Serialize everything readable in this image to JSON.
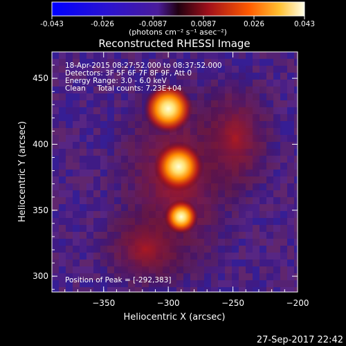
{
  "chart_data": {
    "type": "heatmap",
    "title": "Reconstructed RHESSI Image",
    "xlabel": "Heliocentric X (arcsec)",
    "ylabel": "Heliocentric Y (arcsec)",
    "xlim": [
      -390,
      -200
    ],
    "ylim": [
      288,
      470
    ],
    "xticks": [
      -350,
      -300,
      -250,
      -200
    ],
    "yticks": [
      300,
      350,
      400,
      450
    ],
    "colorbar": {
      "label": "(photons cm⁻² s⁻¹ asec⁻²)",
      "ticks": [
        "-0.043",
        "-0.026",
        "-0.0087",
        "0.0087",
        "0.026",
        "0.043"
      ],
      "range": [
        -0.043,
        0.043
      ]
    },
    "info_lines": [
      "18-Apr-2015 08:27:52.000 to 08:37:52.000",
      "Detectors: 3F 5F 6F 7F 8F 9F, Att 0",
      "Energy Range: 3.0 - 6.0 keV",
      "Clean     Total counts: 7.23E+04"
    ],
    "peak_label": "Position of Peak = [-292,383]",
    "sources": [
      {
        "x": -300,
        "y": 427,
        "peak": 0.043
      },
      {
        "x": -292,
        "y": 383,
        "peak": 0.043
      },
      {
        "x": -290,
        "y": 345,
        "peak": 0.026
      }
    ]
  },
  "footer": {
    "timestamp": "27-Sep-2017 22:42"
  }
}
